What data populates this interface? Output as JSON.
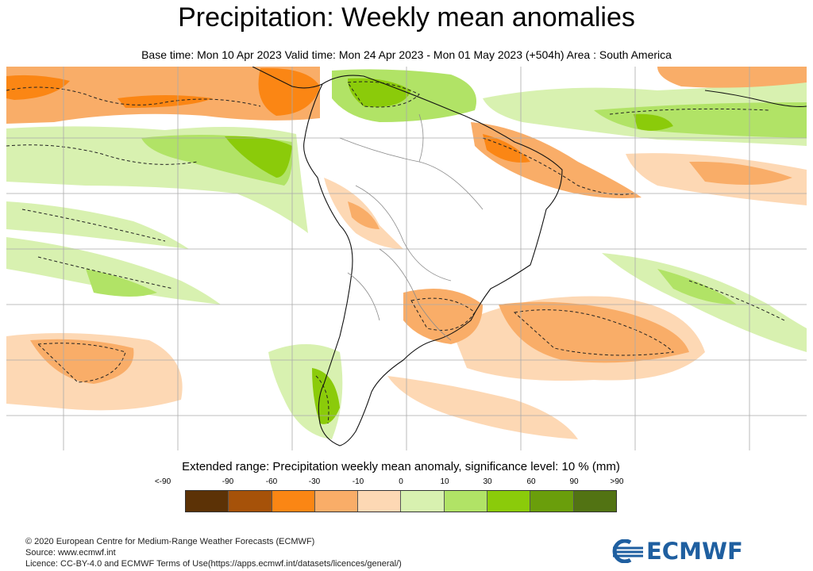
{
  "header": {
    "title": "Precipitation: Weekly mean anomalies",
    "subtitle": "Base time: Mon 10 Apr 2023 Valid time: Mon 24 Apr 2023 - Mon 01 May 2023 (+504h) Area : South America"
  },
  "map": {
    "area": "South America",
    "grid": true,
    "land_color": "#ffffff",
    "border_color": "#8c8c8c",
    "coast_color": "#111111"
  },
  "legend": {
    "title": "Extended range: Precipitation weekly mean anomaly, significance level: 10 % (mm)",
    "tick_labels": [
      "<-90",
      "-90",
      "-60",
      "-30",
      "-10",
      "0",
      "10",
      "30",
      "60",
      "90",
      ">90"
    ],
    "colors": [
      "#5c3206",
      "#a65209",
      "#fb8614",
      "#f9ad68",
      "#fdd8b4",
      "#d8f1b0",
      "#b1e366",
      "#8bcb0a",
      "#6a9e0b",
      "#527313"
    ]
  },
  "footer": {
    "line1": "© 2020 European Centre for Medium-Range Weather Forecasts (ECMWF)",
    "line2": "Source: www.ecmwf.int",
    "line3": "Licence: CC-BY-4.0 and ECMWF Terms of Use(https://apps.ecmwf.int/datasets/licences/general/)"
  },
  "logo": {
    "text": "ECMWF",
    "icon": "ecmwf-logo-icon",
    "color": "#1f5fa0"
  }
}
